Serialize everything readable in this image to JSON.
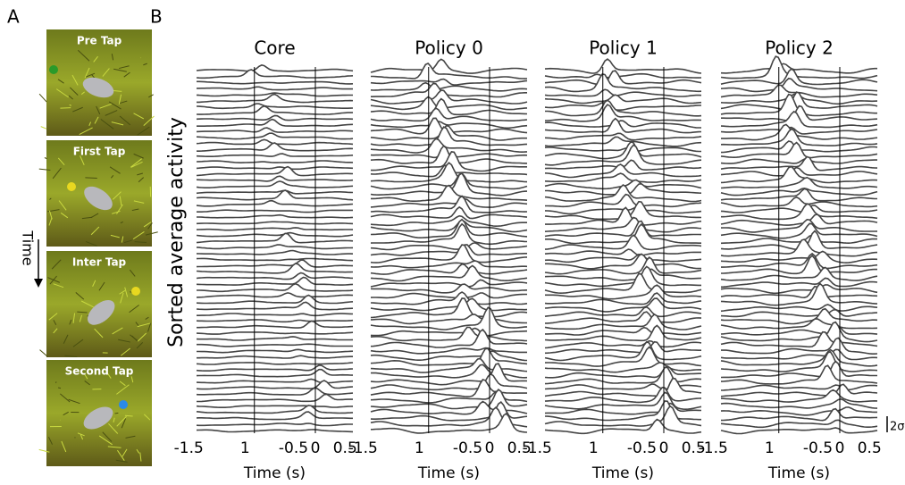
{
  "panel_a": {
    "label": "A",
    "frames": [
      "Pre Tap",
      "First Tap",
      "Inter Tap",
      "Second Tap"
    ],
    "arrow_label": "Time"
  },
  "panel_b": {
    "label": "B",
    "y_label": "Sorted average activity",
    "x_label": "Time (s)",
    "scale_label": "2σ",
    "panels": [
      {
        "title": "Core"
      },
      {
        "title": "Policy 0"
      },
      {
        "title": "Policy 1"
      },
      {
        "title": "Policy 2"
      }
    ],
    "x_tick_labels": [
      "-1.5",
      "1",
      "-0.5",
      "0",
      "0.5"
    ]
  }
}
